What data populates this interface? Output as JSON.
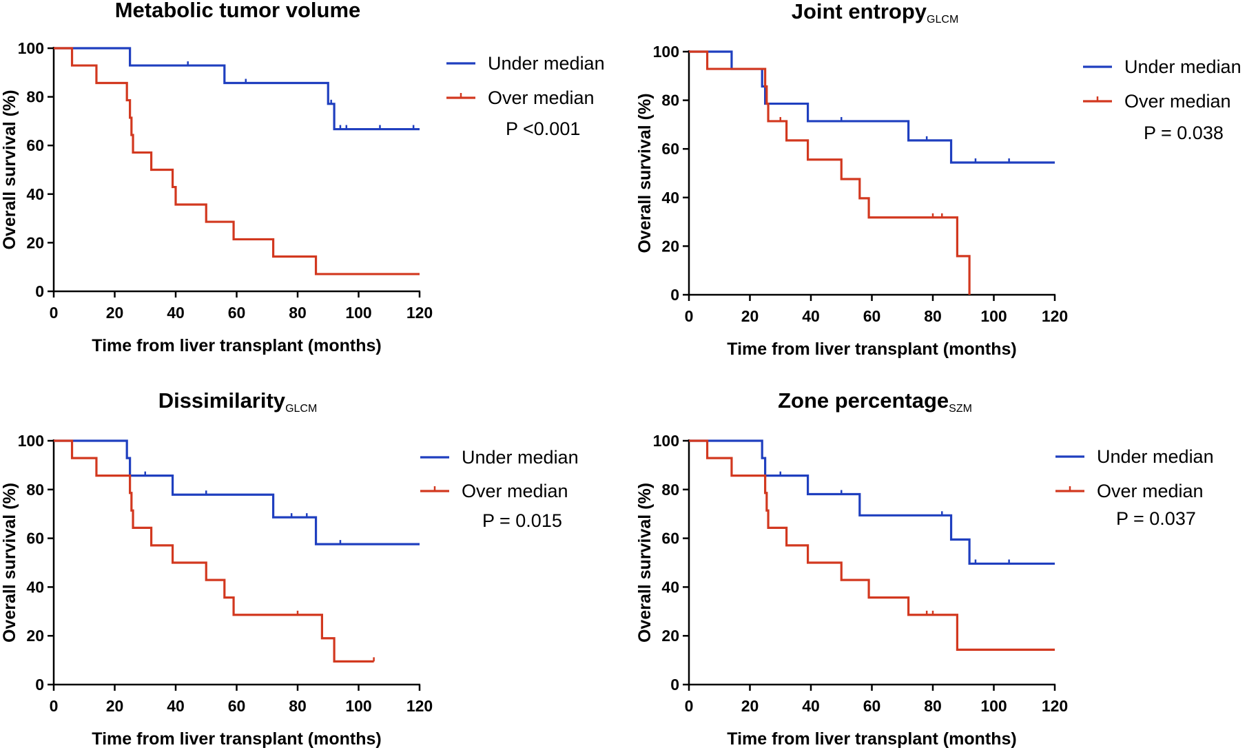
{
  "chart_data": [
    {
      "type": "line",
      "title": "Metabolic tumor volume",
      "title_sub": "",
      "xlabel": "Time from liver transplant (months)",
      "ylabel": "Overall survival (%)",
      "xlim": [
        0,
        120
      ],
      "ylim": [
        0,
        100
      ],
      "xticks": [
        "0",
        "20",
        "40",
        "60",
        "80",
        "100",
        "120"
      ],
      "yticks": [
        "0",
        "20",
        "40",
        "60",
        "80",
        "100"
      ],
      "legend_position": "right",
      "pvalue": "P <0.001",
      "series": [
        {
          "name": "Under median",
          "color": "#1f3fbf",
          "steps": [
            [
              0,
              100
            ],
            [
              25,
              92.9
            ],
            [
              56,
              85.7
            ],
            [
              90,
              77.1
            ],
            [
              92,
              66.7
            ],
            [
              120,
              66.7
            ]
          ],
          "censors": [
            [
              44,
              92.9
            ],
            [
              63,
              85.7
            ],
            [
              91,
              77.1
            ],
            [
              94,
              66.7
            ],
            [
              96,
              66.7
            ],
            [
              107,
              66.7
            ],
            [
              118,
              66.7
            ]
          ]
        },
        {
          "name": "Over median",
          "color": "#d2381f",
          "steps": [
            [
              0,
              100
            ],
            [
              6,
              92.9
            ],
            [
              14,
              85.7
            ],
            [
              24,
              78.6
            ],
            [
              25,
              71.4
            ],
            [
              25.5,
              64.3
            ],
            [
              26,
              57.1
            ],
            [
              32,
              50
            ],
            [
              39,
              42.9
            ],
            [
              40,
              35.7
            ],
            [
              50,
              28.6
            ],
            [
              59,
              21.4
            ],
            [
              72,
              14.3
            ],
            [
              86,
              7.1
            ],
            [
              120,
              7.1
            ]
          ],
          "censors": []
        }
      ]
    },
    {
      "type": "line",
      "title": "Joint entropy",
      "title_sub": "GLCM",
      "xlabel": "Time from liver transplant (months)",
      "ylabel": "Overall survival (%)",
      "xlim": [
        0,
        120
      ],
      "ylim": [
        0,
        100
      ],
      "xticks": [
        "0",
        "20",
        "40",
        "60",
        "80",
        "100",
        "120"
      ],
      "yticks": [
        "0",
        "20",
        "40",
        "60",
        "80",
        "100"
      ],
      "legend_position": "right",
      "pvalue": "P = 0.038",
      "series": [
        {
          "name": "Under median",
          "color": "#1f3fbf",
          "steps": [
            [
              0,
              100
            ],
            [
              14,
              92.9
            ],
            [
              24,
              85.7
            ],
            [
              25,
              78.6
            ],
            [
              39,
              71.4
            ],
            [
              72,
              63.5
            ],
            [
              86,
              54.4
            ],
            [
              120,
              54.4
            ]
          ],
          "censors": [
            [
              50,
              71.4
            ],
            [
              78,
              63.5
            ],
            [
              94,
              54.4
            ],
            [
              105,
              54.4
            ]
          ]
        },
        {
          "name": "Over median",
          "color": "#d2381f",
          "steps": [
            [
              0,
              100
            ],
            [
              6,
              92.9
            ],
            [
              25,
              85.7
            ],
            [
              25.5,
              78.6
            ],
            [
              26,
              71.4
            ],
            [
              32,
              63.5
            ],
            [
              39,
              55.6
            ],
            [
              50,
              47.6
            ],
            [
              56,
              39.7
            ],
            [
              59,
              31.8
            ],
            [
              88,
              15.9
            ],
            [
              92,
              0
            ]
          ],
          "censors": [
            [
              30,
              71.4
            ],
            [
              80,
              31.8
            ],
            [
              83,
              31.8
            ]
          ]
        }
      ]
    },
    {
      "type": "line",
      "title": "Dissimilarity",
      "title_sub": "GLCM",
      "xlabel": "Time from liver transplant (months)",
      "ylabel": "Overall survival (%)",
      "xlim": [
        0,
        120
      ],
      "ylim": [
        0,
        100
      ],
      "xticks": [
        "0",
        "20",
        "40",
        "60",
        "80",
        "100",
        "120"
      ],
      "yticks": [
        "0",
        "20",
        "40",
        "60",
        "80",
        "100"
      ],
      "legend_position": "right",
      "pvalue": "P = 0.015",
      "series": [
        {
          "name": "Under median",
          "color": "#1f3fbf",
          "steps": [
            [
              0,
              100
            ],
            [
              24,
              92.9
            ],
            [
              25,
              85.7
            ],
            [
              39,
              77.9
            ],
            [
              72,
              68.6
            ],
            [
              86,
              57.6
            ],
            [
              120,
              57.6
            ]
          ],
          "censors": [
            [
              30,
              85.7
            ],
            [
              50,
              77.9
            ],
            [
              78,
              68.6
            ],
            [
              83,
              68.6
            ],
            [
              94,
              57.6
            ]
          ]
        },
        {
          "name": "Over median",
          "color": "#d2381f",
          "steps": [
            [
              0,
              100
            ],
            [
              6,
              92.9
            ],
            [
              14,
              85.7
            ],
            [
              25,
              78.6
            ],
            [
              25.5,
              71.4
            ],
            [
              26,
              64.3
            ],
            [
              32,
              57.1
            ],
            [
              39,
              50
            ],
            [
              50,
              42.9
            ],
            [
              56,
              35.7
            ],
            [
              59,
              28.6
            ],
            [
              88,
              19
            ],
            [
              92,
              9.5
            ],
            [
              105,
              9.5
            ]
          ],
          "censors": [
            [
              80,
              28.6
            ],
            [
              105,
              9.5
            ]
          ]
        }
      ]
    },
    {
      "type": "line",
      "title": "Zone percentage",
      "title_sub": "SZM",
      "xlabel": "Time from liver transplant (months)",
      "ylabel": "Overall survival (%)",
      "xlim": [
        0,
        120
      ],
      "ylim": [
        0,
        100
      ],
      "xticks": [
        "0",
        "20",
        "40",
        "60",
        "80",
        "100",
        "120"
      ],
      "yticks": [
        "0",
        "20",
        "40",
        "60",
        "80",
        "100"
      ],
      "legend_position": "right",
      "pvalue": "P = 0.037",
      "series": [
        {
          "name": "Under median",
          "color": "#1f3fbf",
          "steps": [
            [
              0,
              100
            ],
            [
              24,
              92.9
            ],
            [
              25,
              85.7
            ],
            [
              39,
              78.1
            ],
            [
              56,
              69.4
            ],
            [
              86,
              59.5
            ],
            [
              92,
              49.6
            ],
            [
              120,
              49.6
            ]
          ],
          "censors": [
            [
              30,
              85.7
            ],
            [
              50,
              78.1
            ],
            [
              83,
              69.4
            ],
            [
              94,
              49.6
            ],
            [
              105,
              49.6
            ]
          ]
        },
        {
          "name": "Over median",
          "color": "#d2381f",
          "steps": [
            [
              0,
              100
            ],
            [
              6,
              92.9
            ],
            [
              14,
              85.7
            ],
            [
              25,
              78.6
            ],
            [
              25.5,
              71.4
            ],
            [
              26,
              64.3
            ],
            [
              32,
              57.1
            ],
            [
              39,
              50
            ],
            [
              50,
              42.9
            ],
            [
              59,
              35.7
            ],
            [
              72,
              28.6
            ],
            [
              88,
              14.3
            ],
            [
              120,
              14.3
            ]
          ],
          "censors": [
            [
              78,
              28.6
            ],
            [
              80,
              28.6
            ]
          ]
        }
      ]
    }
  ]
}
